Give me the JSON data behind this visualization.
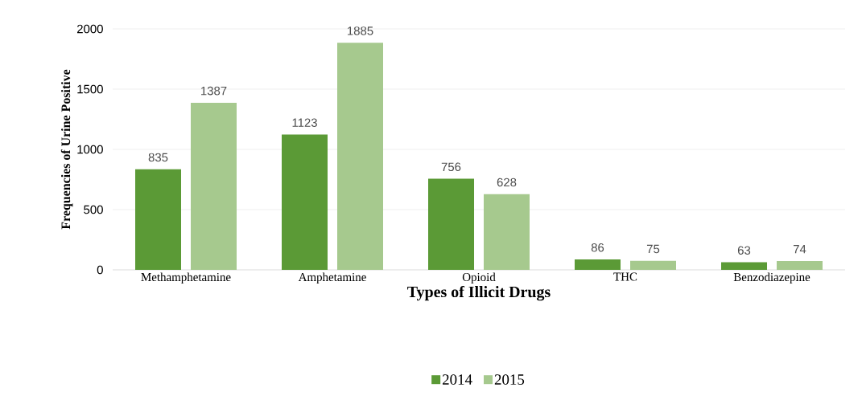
{
  "chart_data": {
    "type": "bar",
    "xlabel": "Types of Illicit Drugs",
    "ylabel": "Frequencies of Urine Positive",
    "categories": [
      "Methamphetamine",
      "Amphetamine",
      "Opioid",
      "THC",
      "Benzodiazepine"
    ],
    "series": [
      {
        "name": "2014",
        "color": "#5b9a36",
        "values": [
          835,
          1123,
          756,
          86,
          63
        ]
      },
      {
        "name": "2015",
        "color": "#a6c98e",
        "values": [
          1387,
          1885,
          628,
          75,
          74
        ]
      }
    ],
    "ylim": [
      0,
      2000
    ],
    "yticks": [
      0,
      500,
      1000,
      1500,
      2000
    ],
    "grid": "y",
    "legend": "bottom",
    "data_labels": true
  }
}
